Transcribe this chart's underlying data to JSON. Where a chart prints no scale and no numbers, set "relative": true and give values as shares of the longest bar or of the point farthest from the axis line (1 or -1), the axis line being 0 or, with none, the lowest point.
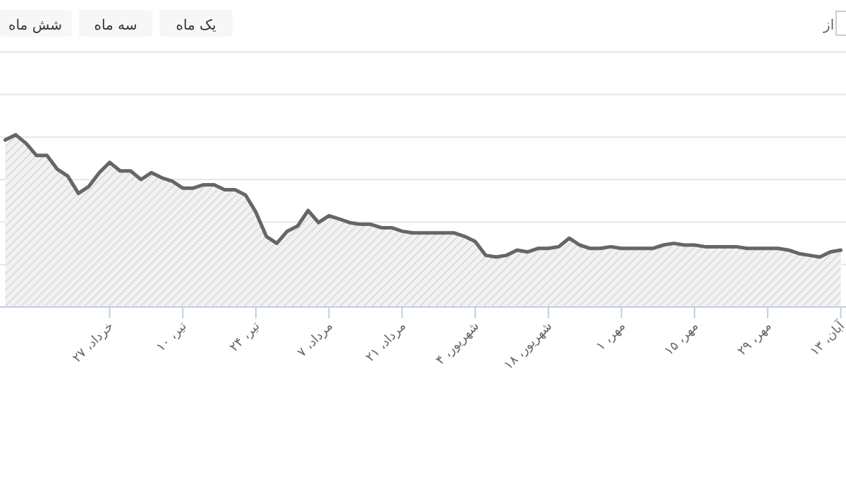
{
  "chart_data": {
    "type": "area",
    "relative": true,
    "grid": "y",
    "annotations": [
      "از",
      "یک ماه",
      "سه ماه",
      "شش ماه"
    ],
    "categories": [
      null,
      null,
      null,
      null,
      null,
      null,
      null,
      null,
      null,
      null,
      "خرداد، ۲۷",
      null,
      null,
      null,
      null,
      null,
      null,
      "تیر، ۱۰",
      null,
      null,
      null,
      null,
      null,
      null,
      "تیر، ۲۴",
      null,
      null,
      null,
      null,
      null,
      null,
      "مرداد، ۷",
      null,
      null,
      null,
      null,
      null,
      null,
      "مرداد، ۲۱",
      null,
      null,
      null,
      null,
      null,
      null,
      "شهریور، ۴",
      null,
      null,
      null,
      null,
      null,
      null,
      "شهریور، ۱۸",
      null,
      null,
      null,
      null,
      null,
      null,
      "مهر، ۱",
      null,
      null,
      null,
      null,
      null,
      null,
      "مهر، ۱۵",
      null,
      null,
      null,
      null,
      null,
      null,
      "مهر، ۲۹",
      null,
      null,
      null,
      null,
      null,
      null,
      "آبان، ۱۳"
    ],
    "series": [
      {
        "color": "#666666",
        "values": [
          0.97,
          1.0,
          0.95,
          0.88,
          0.88,
          0.8,
          0.76,
          0.66,
          0.7,
          0.78,
          0.84,
          0.79,
          0.79,
          0.74,
          0.78,
          0.75,
          0.73,
          0.69,
          0.69,
          0.71,
          0.71,
          0.68,
          0.68,
          0.65,
          0.55,
          0.41,
          0.37,
          0.44,
          0.47,
          0.56,
          0.49,
          0.53,
          0.51,
          0.49,
          0.48,
          0.48,
          0.46,
          0.46,
          0.44,
          0.43,
          0.43,
          0.43,
          0.43,
          0.43,
          0.41,
          0.38,
          0.3,
          0.29,
          0.3,
          0.33,
          0.32,
          0.34,
          0.34,
          0.35,
          0.4,
          0.36,
          0.34,
          0.34,
          0.35,
          0.34,
          0.34,
          0.34,
          0.34,
          0.36,
          0.37,
          0.36,
          0.36,
          0.35,
          0.35,
          0.35,
          0.35,
          0.34,
          0.34,
          0.34,
          0.34,
          0.33,
          0.31,
          0.3,
          0.29,
          0.32,
          0.33
        ]
      }
    ]
  }
}
